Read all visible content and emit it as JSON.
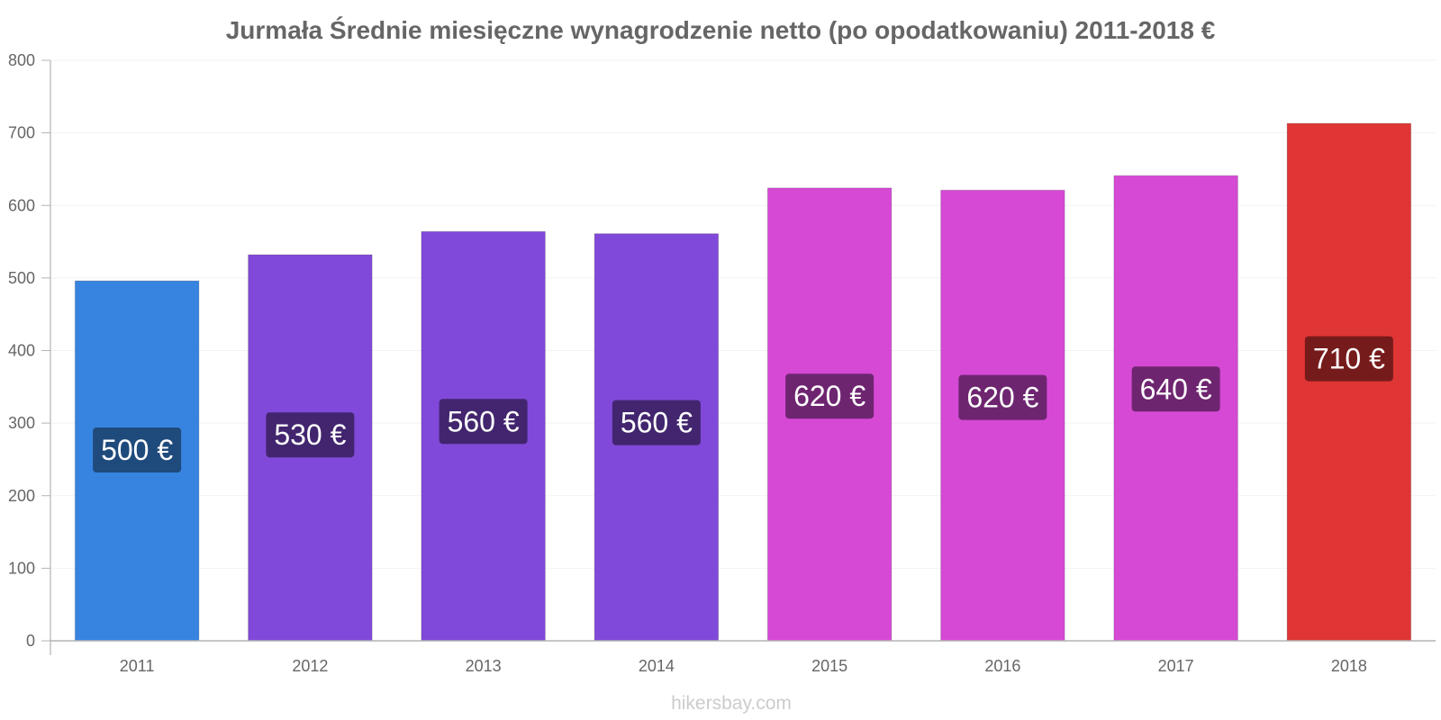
{
  "chart_data": {
    "type": "bar",
    "title": "Jurmała Średnie miesięczne wynagrodzenie netto (po opodatkowaniu) 2011-2018 €",
    "categories": [
      "2011",
      "2012",
      "2013",
      "2014",
      "2015",
      "2016",
      "2017",
      "2018"
    ],
    "values": [
      496,
      532,
      564,
      561,
      624,
      621,
      641,
      713
    ],
    "data_labels": [
      "500 €",
      "530 €",
      "560 €",
      "560 €",
      "620 €",
      "620 €",
      "640 €",
      "710 €"
    ],
    "bar_colors": [
      "#3784e0",
      "#8149d9",
      "#8149d9",
      "#8149d9",
      "#d649d5",
      "#d649d5",
      "#d649d5",
      "#e03535"
    ],
    "label_box_colors": [
      "#1f4a7c",
      "#42256e",
      "#42256e",
      "#42256e",
      "#6e2570",
      "#6e2570",
      "#6e2570",
      "#761b1b"
    ],
    "xlabel": "",
    "ylabel": "",
    "ylim": [
      0,
      800
    ],
    "yticks": [
      "0",
      "100",
      "200",
      "300",
      "400",
      "500",
      "600",
      "700",
      "800"
    ],
    "grid": true,
    "legend": "none"
  },
  "watermark": "hikersbay.com"
}
